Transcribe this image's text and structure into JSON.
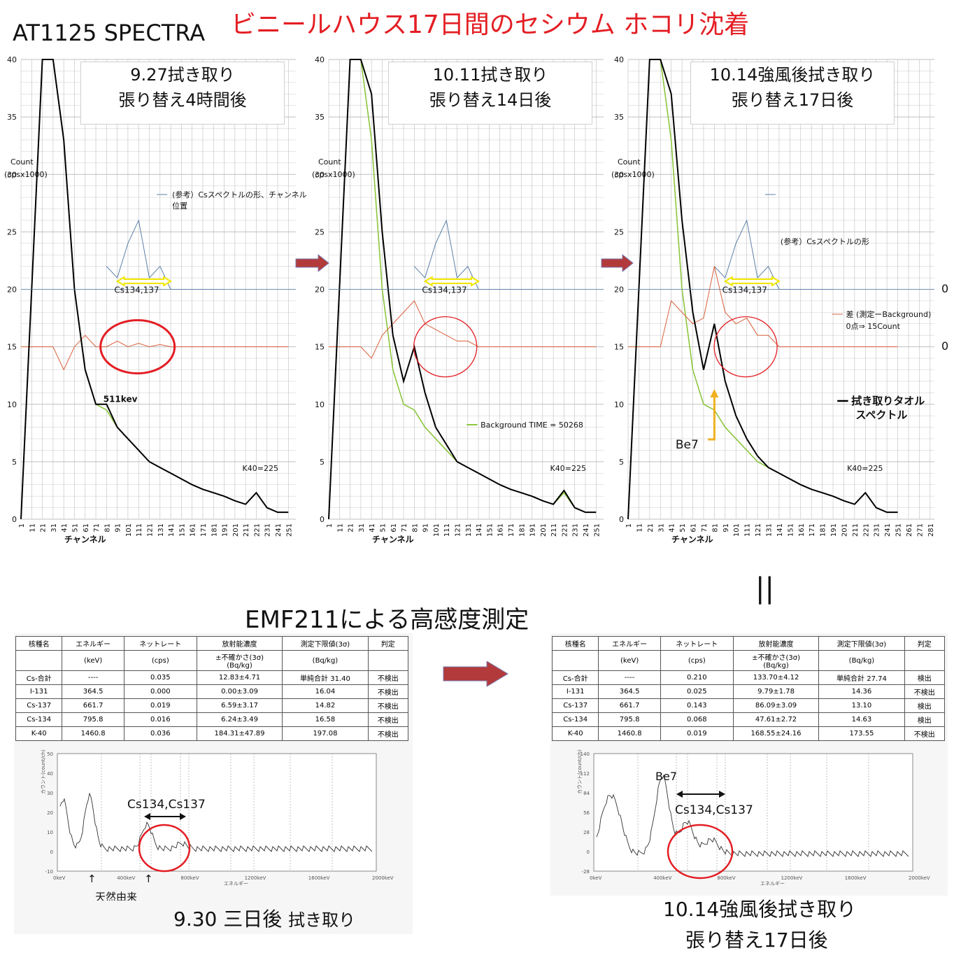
{
  "header": {
    "main_title": "ビニールハウス17日間のセシウム ホコリ沈着",
    "at_title": "AT1125 SPECTRA"
  },
  "colors": {
    "sample": "#000000",
    "background": "#8dc63f",
    "difference": "#d9603b",
    "reference": "#5b7fa8",
    "annotation": "#e31e24",
    "band_arrow": "#f2e600",
    "gridline": "#bfbfbf",
    "flow_arrow": "#b23a3a"
  },
  "spectra_common": {
    "xlabel": "チャンネル",
    "ylabel_line1": "Count",
    "ylabel_line2": "(cpsx1000)",
    "cs_label": "Cs134,137",
    "k40_label": "K40=225",
    "y_ticks": [
      "0",
      "5",
      "10",
      "15",
      "20",
      "25",
      "30",
      "35",
      "40"
    ],
    "x_ticks": [
      "1",
      "11",
      "21",
      "31",
      "41",
      "51",
      "61",
      "71",
      "81",
      "91",
      "101",
      "111",
      "121",
      "131",
      "141",
      "151",
      "161",
      "171",
      "181",
      "191",
      "201",
      "211",
      "221",
      "231",
      "241",
      "251",
      "261",
      "271",
      "281"
    ]
  },
  "panels": [
    {
      "box_line1": "9.27拭き取り",
      "box_line2": "張り替え4時間後",
      "ylabel": true,
      "ref_legend": "(参考）Csスペクトルの形、チャンネル",
      "ref_legend2": "位置",
      "bg_legend": "",
      "diff_legend": "",
      "diff_legend2": "",
      "sample_legend": "",
      "sample_legend2": "",
      "extra": "511kev",
      "be7": ""
    },
    {
      "box_line1": "10.11拭き取り",
      "box_line2": "張り替え14日後",
      "ylabel": true,
      "ref_legend": "",
      "ref_legend2": "",
      "bg_legend": "Background TIME = 50268",
      "diff_legend": "",
      "diff_legend2": "",
      "sample_legend": "",
      "sample_legend2": "",
      "extra": "",
      "be7": ""
    },
    {
      "box_line1": "10.14強風後拭き取り",
      "box_line2": "張り替え17日後",
      "ylabel": true,
      "ref_legend": "(参考）Csスペクトルの形",
      "ref_legend2": "",
      "bg_legend": "",
      "diff_legend": "差 (測定ーBackground)",
      "diff_legend2": "0点⇒ 15Count",
      "sample_legend": "拭き取りタオル",
      "sample_legend2": "スペクトル",
      "extra": "",
      "be7": "Be7"
    }
  ],
  "right_zero_labels": [
    "0",
    "0"
  ],
  "equals_sign": "||",
  "chart_data": [
    {
      "type": "line",
      "title": "9.27拭き取り 張り替え4時間後",
      "xlabel": "チャンネル",
      "ylabel": "Count (cpsx1000)",
      "ylim": [
        0,
        40
      ],
      "x": [
        1,
        21,
        31,
        41,
        51,
        61,
        71,
        81,
        91,
        101,
        111,
        121,
        131,
        141,
        151,
        161,
        171,
        181,
        191,
        201,
        211,
        221,
        231,
        241,
        251
      ],
      "series": [
        {
          "name": "拭き取りタオルスペクトル",
          "values": [
            0,
            40,
            40,
            33,
            20,
            13,
            10,
            10,
            8,
            7,
            6,
            5,
            4.5,
            4,
            3.5,
            3,
            2.6,
            2.3,
            2,
            1.6,
            1.3,
            2.3,
            1,
            0.6,
            0.6
          ]
        },
        {
          "name": "Background TIME = 50268",
          "values": [
            0,
            40,
            40,
            33,
            20,
            13,
            10,
            9.5,
            8,
            7,
            6,
            5,
            4.5,
            4,
            3.5,
            3,
            2.6,
            2.3,
            2,
            1.6,
            1.3,
            2.3,
            1,
            0.6,
            0.6
          ]
        },
        {
          "name": "(参考）Csスペクトルの形",
          "values": [
            null,
            null,
            null,
            null,
            null,
            null,
            null,
            22,
            21,
            24,
            26,
            21,
            22,
            20,
            20,
            20,
            20,
            20,
            20,
            null,
            null,
            null,
            null,
            null,
            null
          ]
        },
        {
          "name": "差 (測定ーBackground)",
          "values": [
            15,
            15,
            15,
            13,
            15,
            16,
            15,
            15,
            15.5,
            15,
            15.3,
            15,
            15.2,
            15,
            15,
            15,
            15,
            15,
            15,
            15,
            15,
            15,
            15,
            15,
            15
          ]
        }
      ],
      "annotations": [
        "Cs134,137",
        "511kev",
        "K40=225"
      ]
    },
    {
      "type": "line",
      "title": "10.11拭き取り 張り替え14日後",
      "xlabel": "チャンネル",
      "ylabel": "Count (cpsx1000)",
      "ylim": [
        0,
        40
      ],
      "x": [
        1,
        21,
        31,
        41,
        51,
        61,
        71,
        81,
        91,
        101,
        111,
        121,
        131,
        141,
        151,
        161,
        171,
        181,
        191,
        201,
        211,
        221,
        231,
        241,
        251
      ],
      "series": [
        {
          "name": "拭き取りタオルスペクトル",
          "values": [
            0,
            40,
            40,
            37,
            25,
            16,
            12,
            15,
            11,
            8,
            6.5,
            5,
            4.5,
            4,
            3.5,
            3,
            2.6,
            2.3,
            2,
            1.6,
            1.3,
            2.5,
            1,
            0.6,
            0.6
          ]
        },
        {
          "name": "Background TIME = 50268",
          "values": [
            0,
            40,
            40,
            33,
            20,
            13,
            10,
            9.5,
            8,
            7,
            6,
            5,
            4.5,
            4,
            3.5,
            3,
            2.6,
            2.3,
            2,
            1.6,
            1.3,
            2.3,
            1,
            0.6,
            0.6
          ]
        },
        {
          "name": "(参考）Csスペクトルの形",
          "values": [
            null,
            null,
            null,
            null,
            null,
            null,
            null,
            22,
            21,
            24,
            26,
            21,
            22,
            20,
            20,
            20,
            20,
            20,
            20,
            null,
            null,
            null,
            null,
            null,
            null
          ]
        },
        {
          "name": "差 (測定ーBackground)",
          "values": [
            15,
            15,
            15,
            14,
            16,
            17,
            18,
            19,
            17,
            16.5,
            16,
            15.5,
            15.5,
            15,
            15,
            15,
            15,
            15,
            15,
            15,
            15,
            15,
            15,
            15,
            15
          ]
        }
      ],
      "annotations": [
        "Cs134,137",
        "K40=225"
      ]
    },
    {
      "type": "line",
      "title": "10.14強風後拭き取り 張り替え17日後",
      "xlabel": "チャンネル",
      "ylabel": "Count (cpsx1000)",
      "ylim": [
        0,
        40
      ],
      "x": [
        1,
        21,
        31,
        41,
        51,
        61,
        71,
        81,
        91,
        101,
        111,
        121,
        131,
        141,
        151,
        161,
        171,
        181,
        191,
        201,
        211,
        221,
        231,
        241,
        251
      ],
      "series": [
        {
          "name": "拭き取りタオルスペクトル",
          "values": [
            0,
            40,
            40,
            37,
            26,
            18,
            13,
            17,
            12,
            9,
            7,
            5.5,
            4.5,
            4,
            3.5,
            3,
            2.6,
            2.3,
            2,
            1.6,
            1.3,
            2.3,
            1,
            0.6,
            0.6
          ]
        },
        {
          "name": "Background TIME = 50268",
          "values": [
            0,
            40,
            40,
            33,
            20,
            13,
            10,
            9.5,
            8,
            7,
            6,
            5,
            4.5,
            4,
            3.5,
            3,
            2.6,
            2.3,
            2,
            1.6,
            1.3,
            2.3,
            1,
            0.6,
            0.6
          ]
        },
        {
          "name": "(参考）Csスペクトルの形",
          "values": [
            null,
            null,
            null,
            null,
            null,
            null,
            null,
            22,
            21,
            24,
            26,
            21,
            22,
            20,
            20,
            20,
            20,
            20,
            20,
            null,
            null,
            null,
            null,
            null,
            null
          ]
        },
        {
          "name": "差 (測定ーBackground)",
          "values": [
            15,
            15,
            15,
            19,
            18,
            17,
            17.5,
            22,
            18,
            17,
            17.5,
            16,
            16,
            15,
            15,
            15,
            15,
            15,
            15,
            15,
            15,
            15,
            15,
            15,
            15
          ]
        }
      ],
      "annotations": [
        "Cs134,137",
        "Be7",
        "K40=225"
      ]
    }
  ],
  "emf": {
    "title": "EMF211による高感度測定",
    "headers": [
      "核種名",
      "エネルギー",
      "ネットレート",
      "放射能濃度",
      "測定下限値(3σ)",
      "判定"
    ],
    "subheaders": [
      "",
      "(keV)",
      "(cps)",
      "±不確かさ(3σ)",
      "(Bq/kg)",
      ""
    ],
    "subheader2": "(Bq/kg)",
    "left_rows": [
      [
        "Cs-合計",
        "----",
        "0.035",
        "12.83±4.71",
        "単純合計 31.40",
        "不検出"
      ],
      [
        "I-131",
        "364.5",
        "0.000",
        "0.00±3.09",
        "16.04",
        "不検出"
      ],
      [
        "Cs-137",
        "661.7",
        "0.019",
        "6.59±3.17",
        "14.82",
        "不検出"
      ],
      [
        "Cs-134",
        "795.8",
        "0.016",
        "6.24±3.49",
        "16.58",
        "不検出"
      ],
      [
        "K-40",
        "1460.8",
        "0.036",
        "184.31±47.89",
        "197.08",
        "不検出"
      ]
    ],
    "right_rows": [
      [
        "Cs-合計",
        "----",
        "0.210",
        "133.70±4.12",
        "単純合計 27.74",
        "検出"
      ],
      [
        "I-131",
        "364.5",
        "0.025",
        "9.79±1.78",
        "14.36",
        "不検出"
      ],
      [
        "Cs-137",
        "661.7",
        "0.143",
        "86.09±3.09",
        "13.10",
        "検出"
      ],
      [
        "Cs-134",
        "795.8",
        "0.068",
        "47.61±2.72",
        "14.63",
        "検出"
      ],
      [
        "K-40",
        "1460.8",
        "0.019",
        "168.55±24.16",
        "173.55",
        "不検出"
      ]
    ],
    "left_plot": {
      "cs_label": "Cs134,Cs137",
      "natural_label": "天然由来",
      "ylabel": "カウント(count/ch)",
      "xlabel": "エネルギー",
      "x_ticks": [
        "0keV",
        "400keV",
        "800keV",
        "1200keV",
        "1600keV",
        "2000keV"
      ],
      "y_ticks": [
        "50",
        "40",
        "30",
        "20",
        "10",
        "0",
        "-10"
      ]
    },
    "right_plot": {
      "cs_label": "Cs134,Cs137",
      "be7_label": "Be7",
      "ylabel": "カウント(count/ch)",
      "xlabel": "エネルギー",
      "x_ticks": [
        "0keV",
        "400keV",
        "800keV",
        "1200keV",
        "1600keV",
        "2000keV"
      ],
      "y_ticks": [
        "140",
        "112",
        "84",
        "56",
        "28",
        "0",
        "-28"
      ]
    },
    "left_caption_main": "9.30 三日後",
    "left_caption_sub": "拭き取り",
    "right_caption_line1": "10.14強風後拭き取り",
    "right_caption_line2": "張り替え17日後"
  }
}
